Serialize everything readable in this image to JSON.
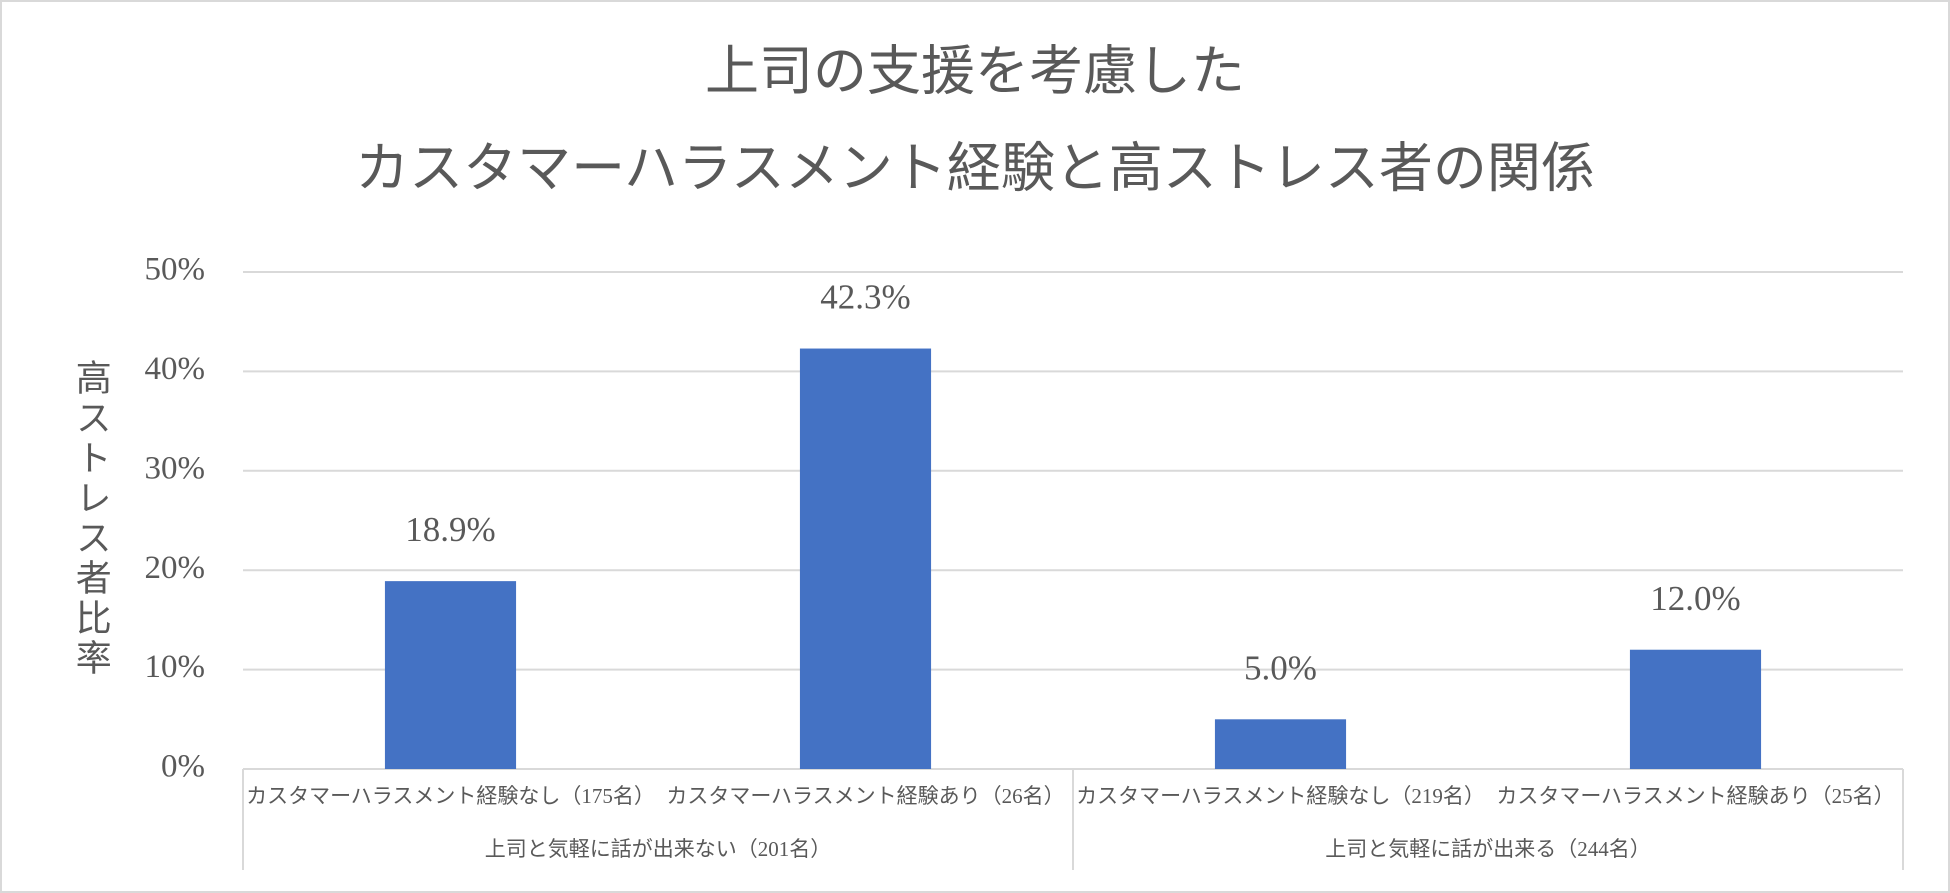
{
  "chart_data": {
    "type": "bar",
    "title": [
      "上司の支援を考慮した",
      "カスタマーハラスメント経験と高ストレス者の関係"
    ],
    "y_label": "高ストレス者比率",
    "groups": [
      {
        "label": "上司と気軽に話が出来ない（201名）",
        "categories": [
          "カスタマーハラスメント経験なし（175名）",
          "カスタマーハラスメント経験あり（26名）"
        ]
      },
      {
        "label": "上司と気軽に話が出来る（244名）",
        "categories": [
          "カスタマーハラスメント経験なし（219名）",
          "カスタマーハラスメント経験あり（25名）"
        ]
      }
    ],
    "values": [
      18.9,
      42.3,
      5.0,
      12.0
    ],
    "value_labels": [
      "18.9%",
      "42.3%",
      "5.0%",
      "12.0%"
    ],
    "color": "#4472c4",
    "ylim": [
      0,
      50
    ],
    "yticks": [
      {
        "value": 0,
        "label": "0%"
      },
      {
        "value": 10,
        "label": "10%"
      },
      {
        "value": 20,
        "label": "20%"
      },
      {
        "value": 30,
        "label": "30%"
      },
      {
        "value": 40,
        "label": "40%"
      },
      {
        "value": 50,
        "label": "50%"
      }
    ],
    "grid": true
  }
}
